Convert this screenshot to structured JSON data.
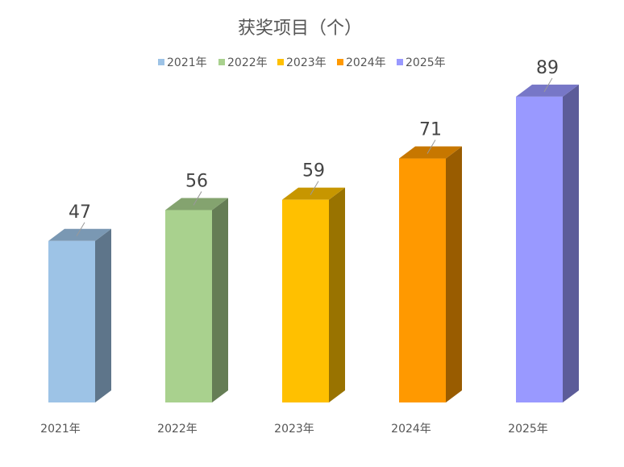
{
  "chart_data": {
    "type": "bar",
    "title": "获奖项目（个）",
    "categories": [
      "2021年",
      "2022年",
      "2023年",
      "2024年",
      "2025年"
    ],
    "series": [
      {
        "name": "2021年",
        "color": "#9DC3E6",
        "values": [
          47,
          null,
          null,
          null,
          null
        ]
      },
      {
        "name": "2022年",
        "color": "#A9D18E",
        "values": [
          null,
          56,
          null,
          null,
          null
        ]
      },
      {
        "name": "2023年",
        "color": "#FFC000",
        "values": [
          null,
          null,
          59,
          null,
          null
        ]
      },
      {
        "name": "2024年",
        "color": "#FF9900",
        "values": [
          null,
          null,
          null,
          71,
          null
        ]
      },
      {
        "name": "2025年",
        "color": "#9999FF",
        "values": [
          null,
          null,
          null,
          null,
          89
        ]
      }
    ],
    "values": [
      47,
      56,
      59,
      71,
      89
    ],
    "legend_position": "top",
    "grid": false,
    "style": "3d-column"
  }
}
